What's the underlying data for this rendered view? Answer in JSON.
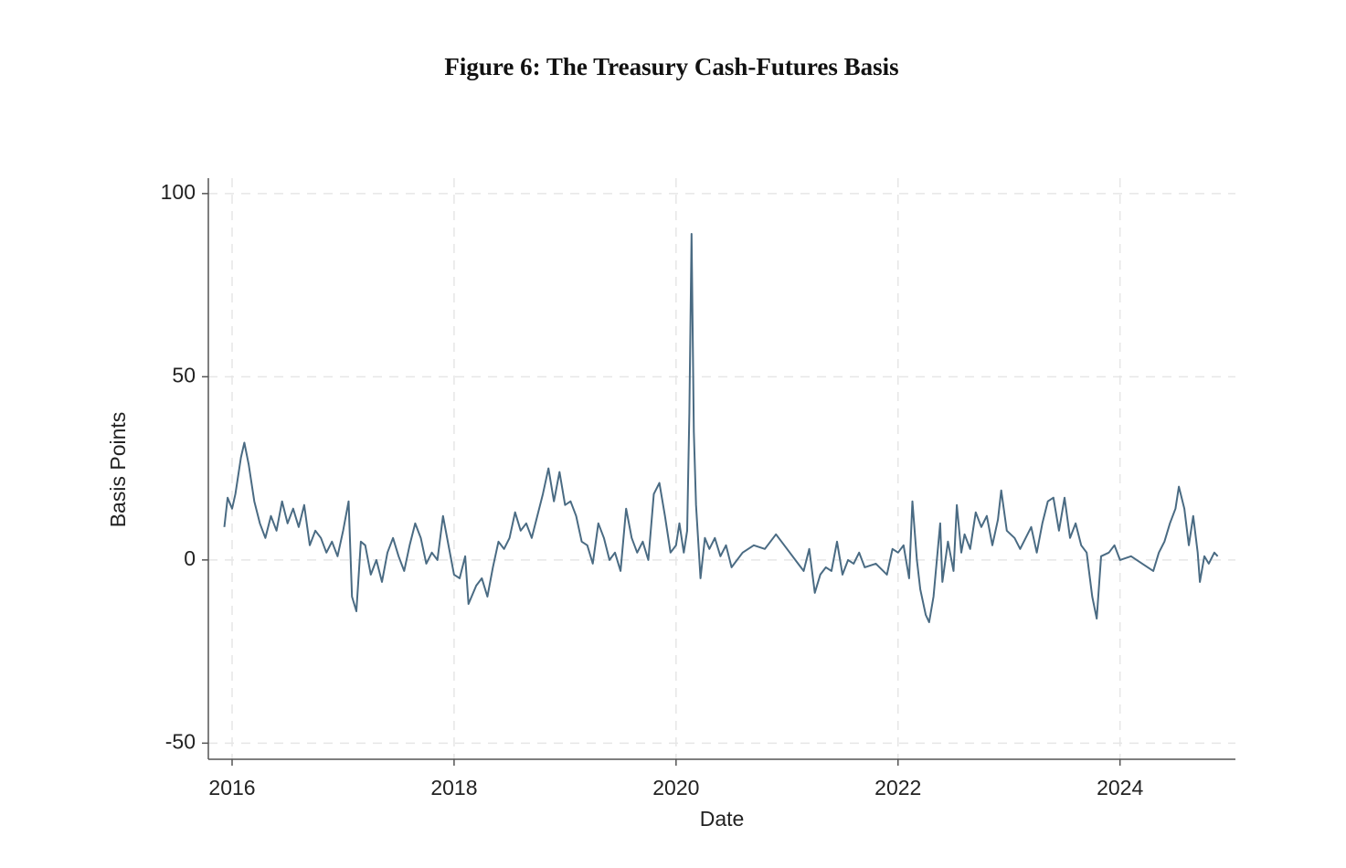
{
  "chart_data": {
    "type": "line",
    "title": "Figure 6: The Treasury Cash-Futures Basis",
    "x_label": "Date",
    "y_label": "Basis Points",
    "color": "#4a6b83",
    "grid": true,
    "xlim": [
      2015.786,
      2025.04
    ],
    "ylim": [
      -54.4,
      104.2
    ],
    "xticks": [
      2016,
      2018,
      2020,
      2022,
      2024
    ],
    "yticks": [
      -50,
      0,
      50,
      100
    ],
    "x": [
      2015.93,
      2015.96,
      2016.0,
      2016.03,
      2016.08,
      2016.11,
      2016.15,
      2016.2,
      2016.25,
      2016.3,
      2016.35,
      2016.4,
      2016.45,
      2016.5,
      2016.55,
      2016.6,
      2016.65,
      2016.7,
      2016.75,
      2016.8,
      2016.85,
      2016.9,
      2016.95,
      2017.0,
      2017.05,
      2017.08,
      2017.12,
      2017.16,
      2017.2,
      2017.25,
      2017.3,
      2017.35,
      2017.4,
      2017.45,
      2017.5,
      2017.55,
      2017.6,
      2017.65,
      2017.7,
      2017.75,
      2017.8,
      2017.85,
      2017.9,
      2017.95,
      2018.0,
      2018.05,
      2018.1,
      2018.13,
      2018.2,
      2018.25,
      2018.3,
      2018.35,
      2018.4,
      2018.45,
      2018.5,
      2018.55,
      2018.6,
      2018.65,
      2018.7,
      2018.75,
      2018.8,
      2018.85,
      2018.9,
      2018.95,
      2019.0,
      2019.05,
      2019.1,
      2019.15,
      2019.2,
      2019.25,
      2019.3,
      2019.35,
      2019.4,
      2019.45,
      2019.5,
      2019.55,
      2019.6,
      2019.65,
      2019.7,
      2019.75,
      2019.8,
      2019.85,
      2019.9,
      2019.95,
      2020.0,
      2020.03,
      2020.07,
      2020.1,
      2020.12,
      2020.14,
      2020.16,
      2020.18,
      2020.22,
      2020.26,
      2020.3,
      2020.35,
      2020.4,
      2020.45,
      2020.5,
      2020.6,
      2020.7,
      2020.8,
      2020.9,
      2021.0,
      2021.1,
      2021.15,
      2021.2,
      2021.25,
      2021.3,
      2021.35,
      2021.4,
      2021.45,
      2021.5,
      2021.55,
      2021.6,
      2021.65,
      2021.7,
      2021.8,
      2021.9,
      2021.95,
      2022.0,
      2022.05,
      2022.1,
      2022.13,
      2022.17,
      2022.2,
      2022.25,
      2022.28,
      2022.32,
      2022.38,
      2022.4,
      2022.45,
      2022.5,
      2022.53,
      2022.57,
      2022.6,
      2022.65,
      2022.7,
      2022.75,
      2022.8,
      2022.85,
      2022.9,
      2022.93,
      2022.98,
      2023.05,
      2023.1,
      2023.2,
      2023.25,
      2023.3,
      2023.35,
      2023.4,
      2023.45,
      2023.5,
      2023.55,
      2023.6,
      2023.65,
      2023.7,
      2023.75,
      2023.79,
      2023.83,
      2023.9,
      2023.95,
      2024.0,
      2024.1,
      2024.2,
      2024.3,
      2024.35,
      2024.4,
      2024.45,
      2024.5,
      2024.53,
      2024.58,
      2024.62,
      2024.66,
      2024.7,
      2024.72,
      2024.76,
      2024.8,
      2024.85,
      2024.88
    ],
    "values": [
      9,
      17,
      14,
      18,
      28,
      32,
      26,
      16,
      10,
      6,
      12,
      8,
      16,
      10,
      14,
      9,
      15,
      4,
      8,
      6,
      2,
      5,
      1,
      8,
      16,
      -10,
      -14,
      5,
      4,
      -4,
      0,
      -6,
      2,
      6,
      1,
      -3,
      4,
      10,
      6,
      -1,
      2,
      0,
      12,
      4,
      -4,
      -5,
      1,
      -12,
      -7,
      -5,
      -10,
      -2,
      5,
      3,
      6,
      13,
      8,
      10,
      6,
      12,
      18,
      25,
      16,
      24,
      15,
      16,
      12,
      5,
      4,
      -1,
      10,
      6,
      0,
      2,
      -3,
      14,
      6,
      2,
      5,
      0,
      18,
      21,
      12,
      2,
      4,
      10,
      2,
      8,
      40,
      89,
      35,
      15,
      -5,
      6,
      3,
      6,
      1,
      4,
      -2,
      2,
      4,
      3,
      7,
      3,
      -1,
      -3,
      3,
      -9,
      -4,
      -2,
      -3,
      5,
      -4,
      0,
      -1,
      2,
      -2,
      -1,
      -4,
      3,
      2,
      4,
      -5,
      16,
      0,
      -8,
      -15,
      -17,
      -10,
      10,
      -6,
      5,
      -3,
      15,
      2,
      7,
      3,
      13,
      9,
      12,
      4,
      11,
      19,
      8,
      6,
      3,
      9,
      2,
      10,
      16,
      17,
      8,
      17,
      6,
      10,
      4,
      2,
      -10,
      -16,
      1,
      2,
      4,
      0,
      1,
      -1,
      -3,
      2,
      5,
      10,
      14,
      20,
      14,
      4,
      12,
      2,
      -6,
      1,
      -1,
      2,
      1
    ]
  }
}
